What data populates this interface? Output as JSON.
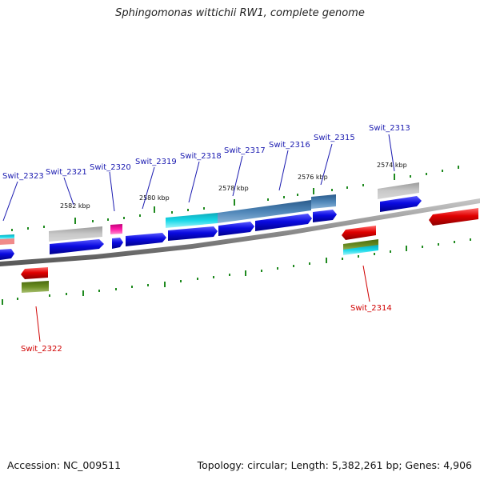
{
  "title": "Sphingomonas wittichii RW1, complete genome",
  "accession": "Accession: NC_009511",
  "footer_info": "Topology: circular; Length: 5,382,261 bp; Genes: 4,906",
  "colors": {
    "cds_forward": "#0a0ae0",
    "cds_reverse": "#e00000",
    "backbone": "#8a8a8a",
    "tick": "#1f8a1f",
    "label_forward": "#1a1ab0",
    "label_reverse": "#d00000",
    "gray": "#b8b8b8",
    "cyan": "#18d8e8",
    "steelblue": "#4f86b8",
    "magenta": "#ff1aa8",
    "olive": "#6b8e23",
    "salmon": "#f08a8a"
  },
  "scale_labels": [
    "2582 kbp",
    "2580 kbp",
    "2578 kbp",
    "2576 kbp",
    "2574 kbp"
  ],
  "gene_labels_forward": [
    "Swit_2323",
    "Swit_2321",
    "Swit_2320",
    "Swit_2319",
    "Swit_2318",
    "Swit_2317",
    "Swit_2316",
    "Swit_2315",
    "Swit_2313"
  ],
  "gene_labels_reverse": [
    "Swit_2322",
    "Swit_2314"
  ]
}
